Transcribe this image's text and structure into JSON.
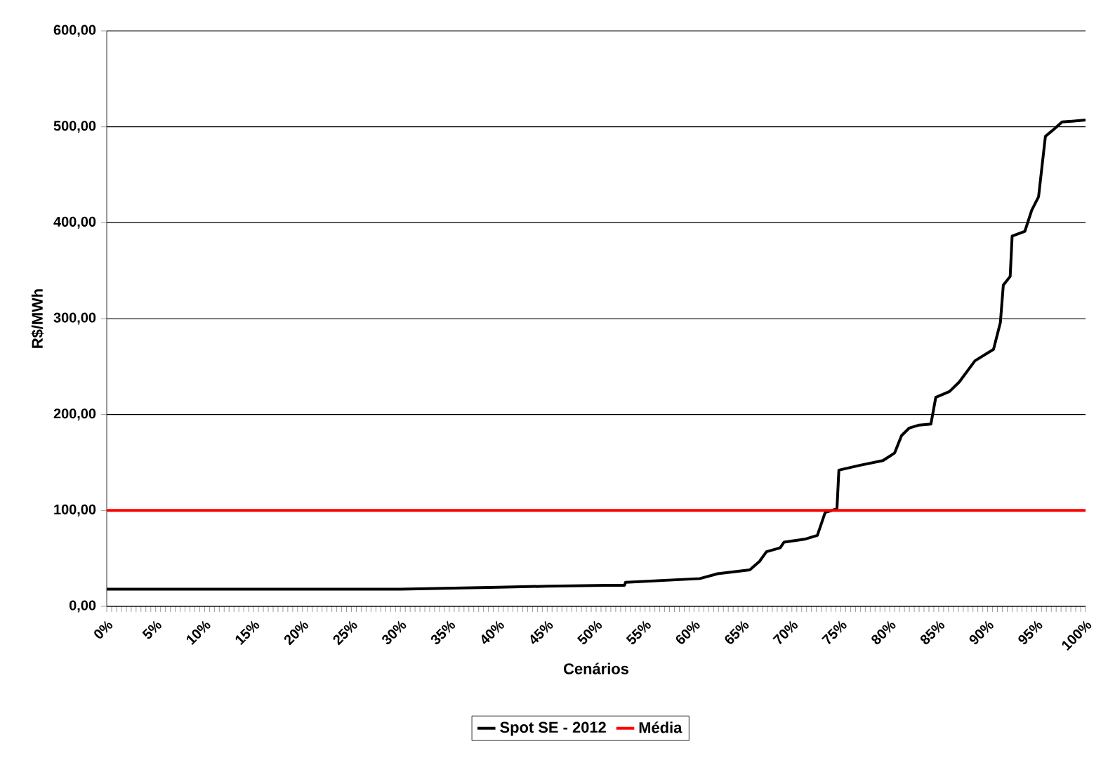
{
  "chart_data": {
    "type": "line",
    "xlabel": "Cenários",
    "ylabel": "R$/MWh",
    "xlim": [
      0,
      100
    ],
    "ylim": [
      0,
      600
    ],
    "xticks": [
      {
        "value": 0,
        "label": "0%"
      },
      {
        "value": 5,
        "label": "5%"
      },
      {
        "value": 10,
        "label": "10%"
      },
      {
        "value": 15,
        "label": "15%"
      },
      {
        "value": 20,
        "label": "20%"
      },
      {
        "value": 25,
        "label": "25%"
      },
      {
        "value": 30,
        "label": "30%"
      },
      {
        "value": 35,
        "label": "35%"
      },
      {
        "value": 40,
        "label": "40%"
      },
      {
        "value": 45,
        "label": "45%"
      },
      {
        "value": 50,
        "label": "50%"
      },
      {
        "value": 55,
        "label": "55%"
      },
      {
        "value": 60,
        "label": "60%"
      },
      {
        "value": 65,
        "label": "65%"
      },
      {
        "value": 70,
        "label": "70%"
      },
      {
        "value": 75,
        "label": "75%"
      },
      {
        "value": 80,
        "label": "80%"
      },
      {
        "value": 85,
        "label": "85%"
      },
      {
        "value": 90,
        "label": "90%"
      },
      {
        "value": 95,
        "label": "95%"
      },
      {
        "value": 100,
        "label": "100%"
      }
    ],
    "yticks": [
      {
        "value": 0,
        "label": "0,00"
      },
      {
        "value": 100,
        "label": "100,00"
      },
      {
        "value": 200,
        "label": "200,00"
      },
      {
        "value": 300,
        "label": "300,00"
      },
      {
        "value": 400,
        "label": "400,00"
      },
      {
        "value": 500,
        "label": "500,00"
      },
      {
        "value": 600,
        "label": "600,00"
      }
    ],
    "grid": "y",
    "legend": "bottom",
    "marker": "none",
    "line_style": "solid",
    "series": [
      {
        "name": "Spot SE - 2012",
        "color": "#000000",
        "x": [
          0,
          20,
          30,
          35,
          40,
          45,
          51.2,
          52.9,
          53.0,
          60.6,
          62.4,
          65.7,
          66.7,
          67.4,
          68.8,
          69.2,
          71.3,
          72.6,
          73.4,
          74.4,
          74.6,
          74.8,
          76.9,
          79.3,
          80.5,
          81.2,
          82,
          83,
          84.2,
          84.7,
          86.1,
          87.1,
          88.7,
          90.6,
          91.3,
          91.6,
          92.3,
          92.5,
          93.8,
          94.5,
          95.2,
          95.9,
          96.6,
          97.6,
          100
        ],
        "values": [
          18,
          18,
          18,
          19,
          20,
          21,
          22,
          22,
          25,
          29,
          34,
          38,
          47,
          57,
          61,
          67,
          70,
          74,
          98,
          101,
          101,
          142,
          147,
          152,
          160,
          178,
          186,
          189,
          190,
          218,
          224,
          234,
          256,
          268,
          296,
          335,
          344,
          386,
          391,
          413,
          427,
          490,
          496,
          505,
          507
        ]
      },
      {
        "name": "Média",
        "color": "#ff0000",
        "x": [
          0,
          100
        ],
        "values": [
          100,
          100
        ]
      }
    ]
  }
}
